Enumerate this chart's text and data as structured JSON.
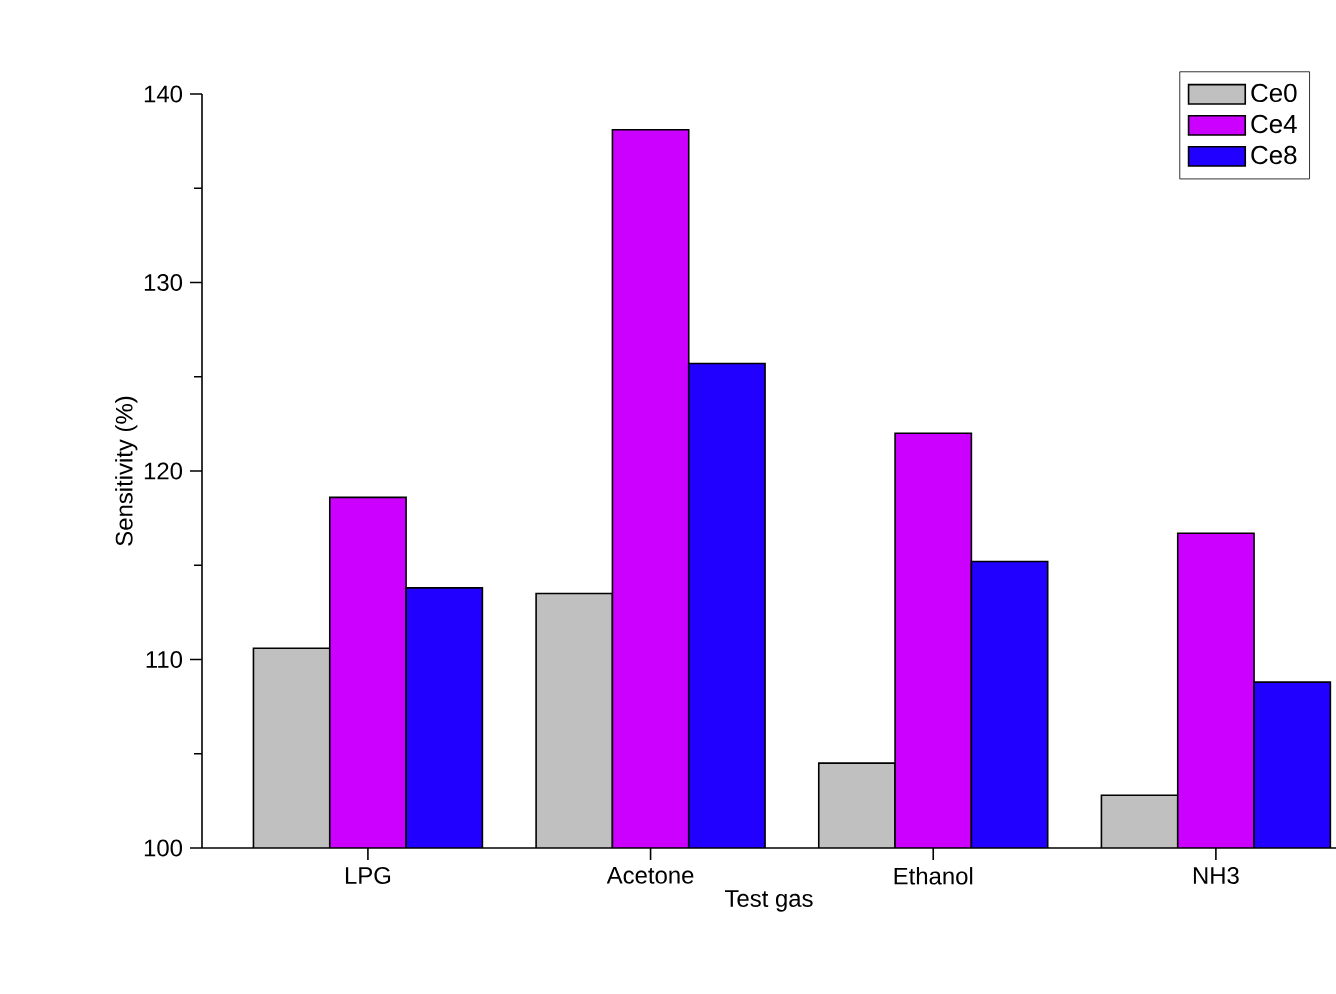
{
  "chart_data": {
    "type": "bar",
    "xlabel": "Test gas",
    "ylabel": "Sensitivity (%)",
    "categories": [
      "LPG",
      "Acetone",
      "Ethanol",
      "NH3"
    ],
    "series": [
      {
        "name": "Ce0",
        "color": "#c0c0c0",
        "values": [
          110.6,
          113.5,
          104.5,
          102.8
        ]
      },
      {
        "name": "Ce4",
        "color": "#cc00ff",
        "values": [
          118.6,
          138.1,
          122.0,
          116.7
        ]
      },
      {
        "name": "Ce8",
        "color": "#2200ff",
        "values": [
          113.8,
          125.7,
          115.2,
          108.8
        ]
      }
    ],
    "ylim": [
      100,
      140
    ],
    "yticks": [
      100,
      {
        "value": 105,
        "label": null
      },
      110,
      {
        "value": 115,
        "label": null
      },
      120,
      {
        "value": 125,
        "label": null
      },
      130,
      {
        "value": 135,
        "label": null
      },
      140
    ],
    "legend": "top right"
  }
}
